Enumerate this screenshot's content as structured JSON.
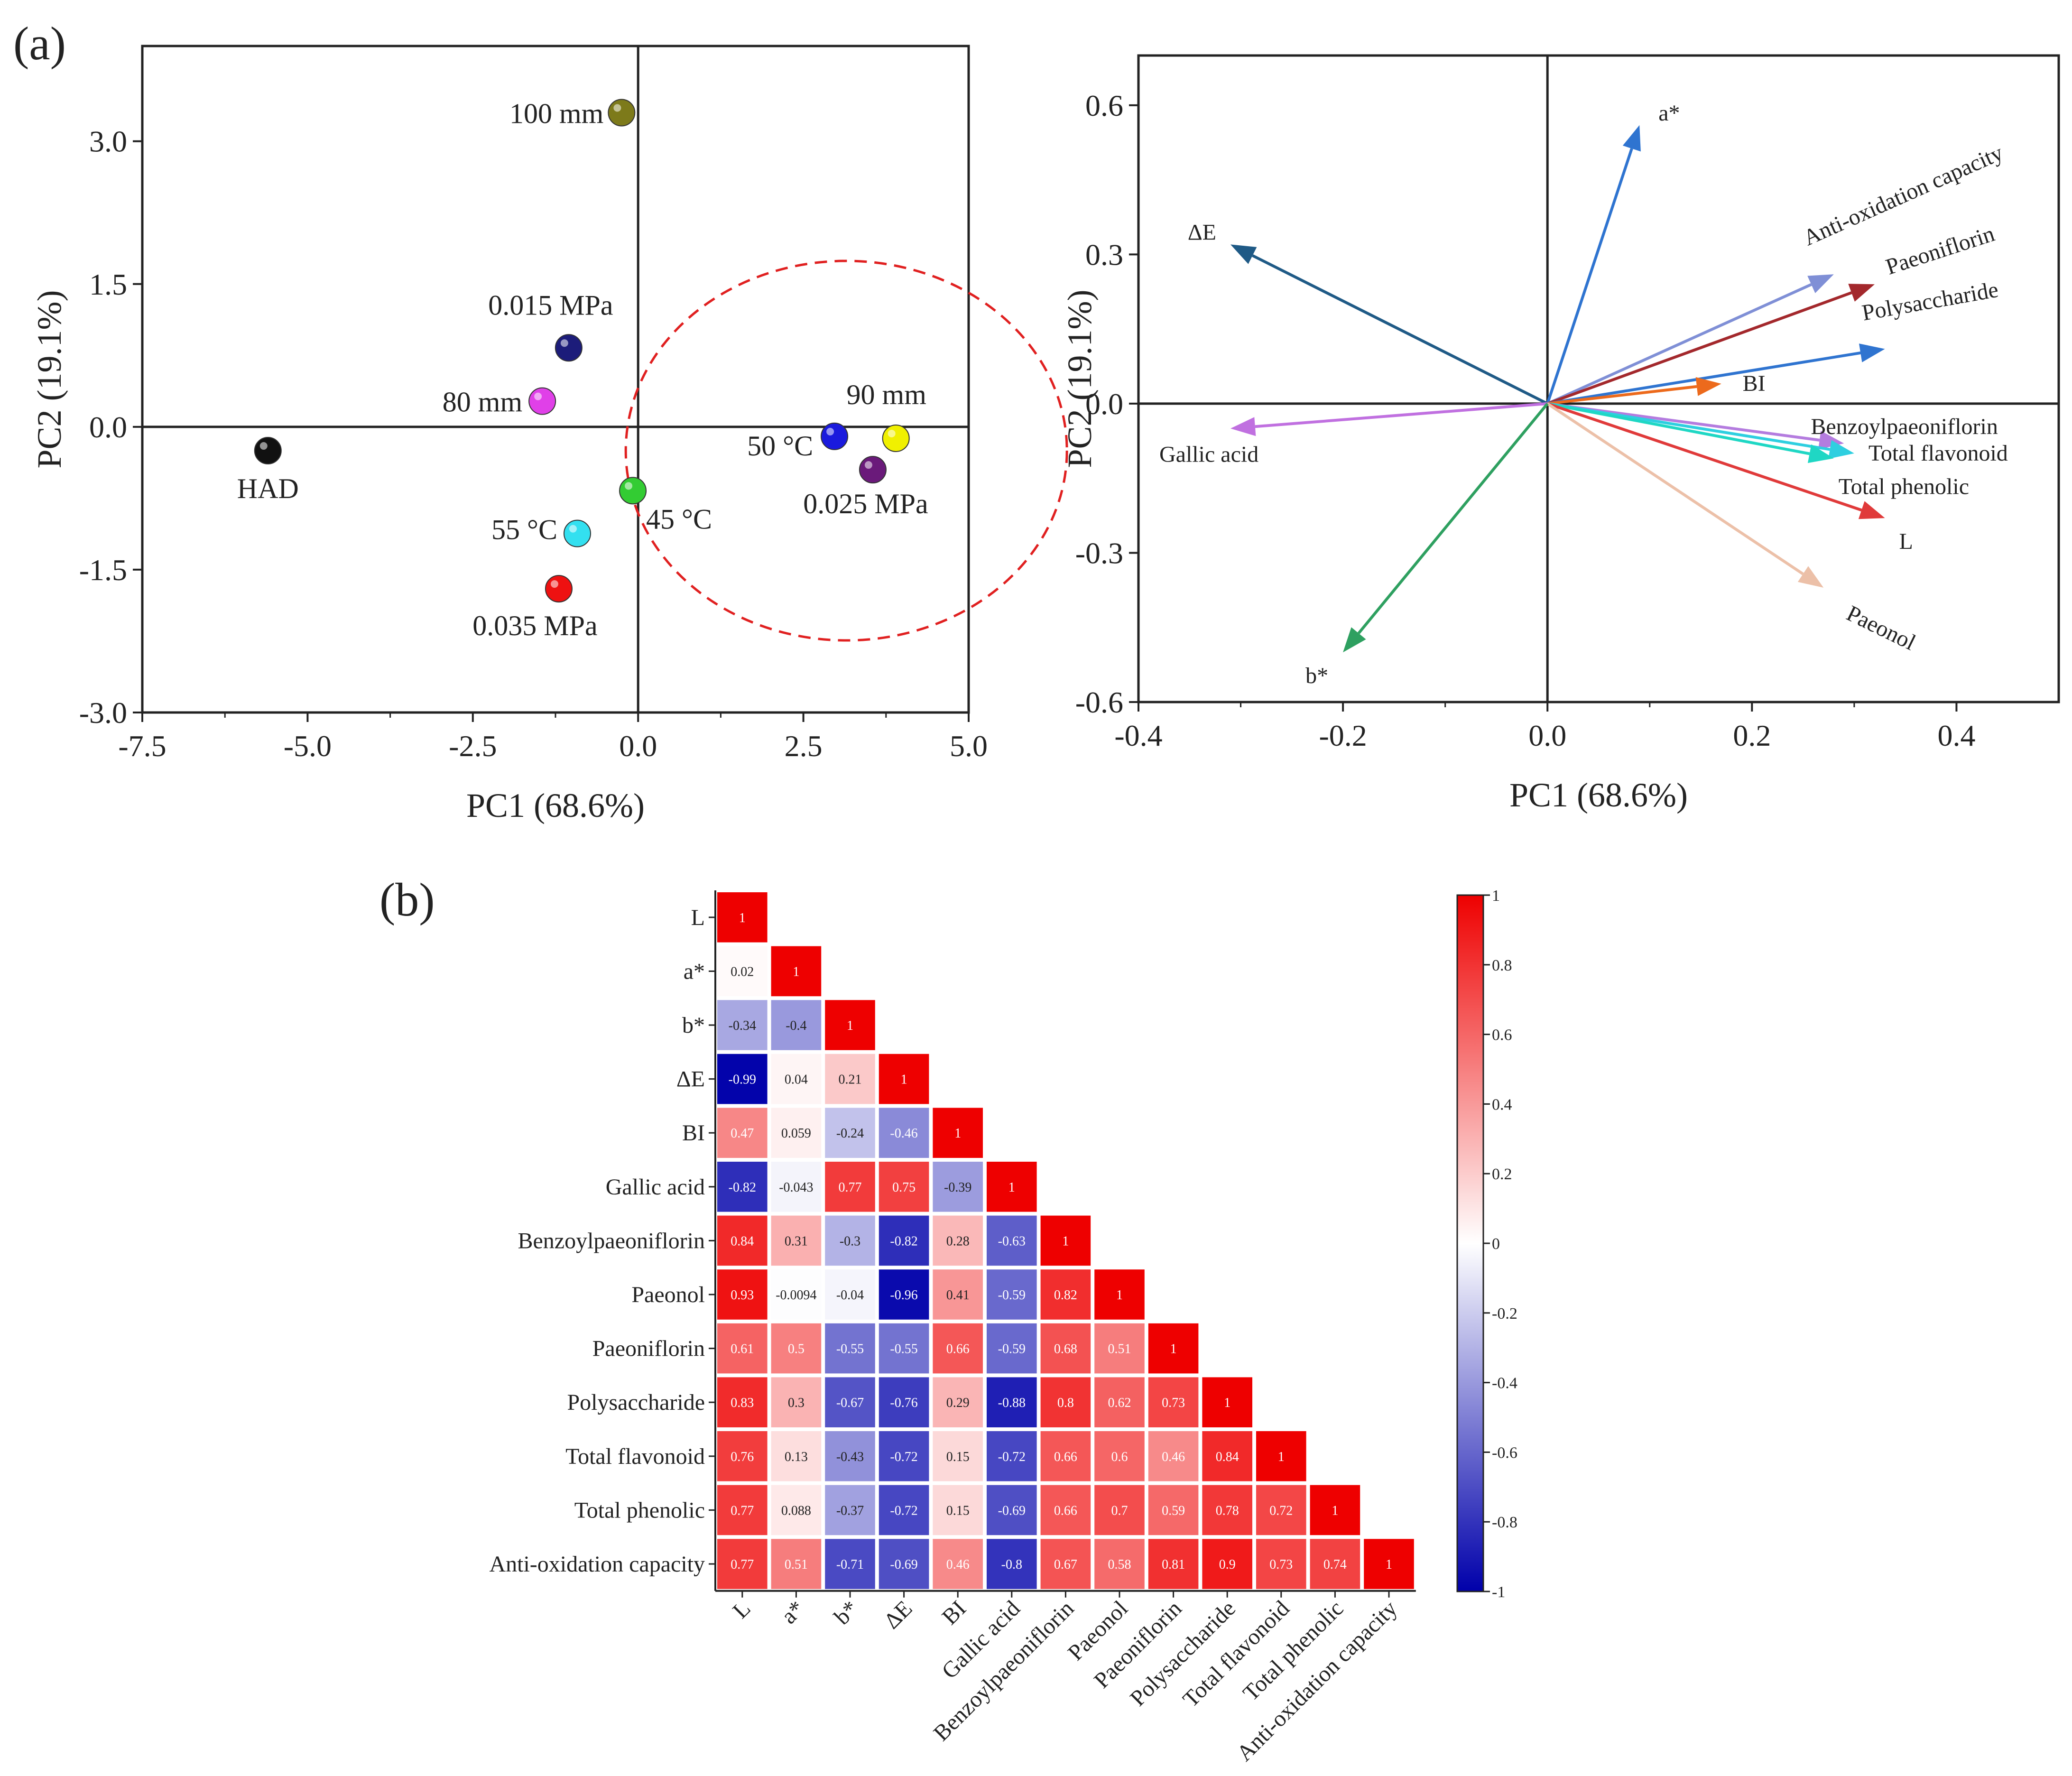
{
  "panel_labels": {
    "a": "(a)",
    "b": "(b)"
  },
  "chart_data": [
    {
      "type": "scatter",
      "panel": "a-left",
      "xlabel": "PC1 (68.6%)",
      "ylabel": "PC2 (19.1%)",
      "xlim": [
        -7.5,
        5.0
      ],
      "ylim": [
        -3.0,
        4.0
      ],
      "xticks": [
        "-7.5",
        "-5.0",
        "-2.5",
        "0.0",
        "2.5",
        "5.0"
      ],
      "yticks": [
        "-3.0",
        "-1.5",
        "0.0",
        "1.5",
        "3.0"
      ],
      "points": [
        {
          "label": "100 mm",
          "x": -0.25,
          "y": 3.3,
          "color": "#7d7a1a"
        },
        {
          "label": "0.015 MPa",
          "x": -1.05,
          "y": 0.83,
          "color": "#1c1c7a"
        },
        {
          "label": "80 mm",
          "x": -1.45,
          "y": 0.27,
          "color": "#e040e8"
        },
        {
          "label": "HAD",
          "x": -5.6,
          "y": -0.25,
          "color": "#111111"
        },
        {
          "label": "45 °C",
          "x": -0.08,
          "y": -0.67,
          "color": "#33cc33"
        },
        {
          "label": "55 °C",
          "x": -0.92,
          "y": -1.12,
          "color": "#33e0f0"
        },
        {
          "label": "0.035 MPa",
          "x": -1.2,
          "y": -1.7,
          "color": "#ee1111"
        },
        {
          "label": "50 °C",
          "x": 2.97,
          "y": -0.1,
          "color": "#1a1add"
        },
        {
          "label": "90 mm",
          "x": 3.9,
          "y": -0.12,
          "color": "#f0f000"
        },
        {
          "label": "0.025 MPa",
          "x": 3.55,
          "y": -0.45,
          "color": "#6a1a7a"
        }
      ],
      "cluster": {
        "cx": 3.15,
        "cy": -0.25,
        "color": "#e02020"
      }
    },
    {
      "type": "scatter",
      "panel": "a-right",
      "subtype": "loading-vectors",
      "xlabel": "PC1 (68.6%)",
      "ylabel": "PC2 (19.1%)",
      "xlim": [
        -0.4,
        0.5
      ],
      "ylim": [
        -0.6,
        0.7
      ],
      "xticks": [
        "-0.4",
        "-0.2",
        "0.0",
        "0.2",
        "0.4"
      ],
      "yticks": [
        "-0.6",
        "-0.3",
        "0.0",
        "0.3",
        "0.6"
      ],
      "vectors": [
        {
          "name": "a*",
          "x": 0.09,
          "y": 0.56,
          "color": "#2f74d0"
        },
        {
          "name": "ΔE",
          "x": -0.31,
          "y": 0.32,
          "color": "#1f5a86"
        },
        {
          "name": "Anti-oxidation capacity",
          "x": 0.28,
          "y": 0.26,
          "color": "#7f8fd6"
        },
        {
          "name": "Paeoniflorin",
          "x": 0.32,
          "y": 0.24,
          "color": "#a3282c"
        },
        {
          "name": "Polysaccharide",
          "x": 0.33,
          "y": 0.11,
          "color": "#2f74d0"
        },
        {
          "name": "BI",
          "x": 0.17,
          "y": 0.04,
          "color": "#ec6a1c"
        },
        {
          "name": "Gallic acid",
          "x": -0.31,
          "y": -0.05,
          "color": "#c070e0"
        },
        {
          "name": "Benzoylpaeoniflorin",
          "x": 0.29,
          "y": -0.08,
          "color": "#b47cdf"
        },
        {
          "name": "Total flavonoid",
          "x": 0.3,
          "y": -0.1,
          "color": "#2ecfe0"
        },
        {
          "name": "Total phenolic",
          "x": 0.28,
          "y": -0.11,
          "color": "#1fd7c4"
        },
        {
          "name": "L",
          "x": 0.33,
          "y": -0.23,
          "color": "#e03a3a"
        },
        {
          "name": "Paeonol",
          "x": 0.27,
          "y": -0.37,
          "color": "#ecc0a8"
        },
        {
          "name": "b*",
          "x": -0.2,
          "y": -0.5,
          "color": "#2ea060"
        }
      ]
    },
    {
      "type": "heatmap",
      "panel": "b",
      "variables": [
        "L",
        "a*",
        "b*",
        "ΔE",
        "BI",
        "Gallic acid",
        "Benzoylpaeoniflorin",
        "Paeonol",
        "Paeoniflorin",
        "Polysaccharide",
        "Total flavonoid",
        "Total phenolic",
        "Anti-oxidation capacity"
      ],
      "lower_triangle": [
        [
          "1"
        ],
        [
          "0.02",
          "1"
        ],
        [
          "-0.34",
          "-0.4",
          "1"
        ],
        [
          "-0.99",
          "0.04",
          "0.21",
          "1"
        ],
        [
          "0.47",
          "0.059",
          "-0.24",
          "-0.46",
          "1"
        ],
        [
          "-0.82",
          "-0.043",
          "0.77",
          "0.75",
          "-0.39",
          "1"
        ],
        [
          "0.84",
          "0.31",
          "-0.3",
          "-0.82",
          "0.28",
          "-0.63",
          "1"
        ],
        [
          "0.93",
          "-0.0094",
          "-0.04",
          "-0.96",
          "0.41",
          "-0.59",
          "0.82",
          "1"
        ],
        [
          "0.61",
          "0.5",
          "-0.55",
          "-0.55",
          "0.66",
          "-0.59",
          "0.68",
          "0.51",
          "1"
        ],
        [
          "0.83",
          "0.3",
          "-0.67",
          "-0.76",
          "0.29",
          "-0.88",
          "0.8",
          "0.62",
          "0.73",
          "1"
        ],
        [
          "0.76",
          "0.13",
          "-0.43",
          "-0.72",
          "0.15",
          "-0.72",
          "0.66",
          "0.6",
          "0.46",
          "0.84",
          "1"
        ],
        [
          "0.77",
          "0.088",
          "-0.37",
          "-0.72",
          "0.15",
          "-0.69",
          "0.66",
          "0.7",
          "0.59",
          "0.78",
          "0.72",
          "1"
        ],
        [
          "0.77",
          "0.51",
          "-0.71",
          "-0.69",
          "0.46",
          "-0.8",
          "0.67",
          "0.58",
          "0.81",
          "0.9",
          "0.73",
          "0.74",
          "1"
        ]
      ],
      "colorbar": {
        "ticks": [
          "1",
          "0.8",
          "0.6",
          "0.4",
          "0.2",
          "0",
          "-0.2",
          "-0.4",
          "-0.6",
          "-0.8",
          "-1"
        ],
        "high_color": "#ee0000",
        "mid_color": "#ffffff",
        "low_color": "#0000aa"
      }
    }
  ]
}
